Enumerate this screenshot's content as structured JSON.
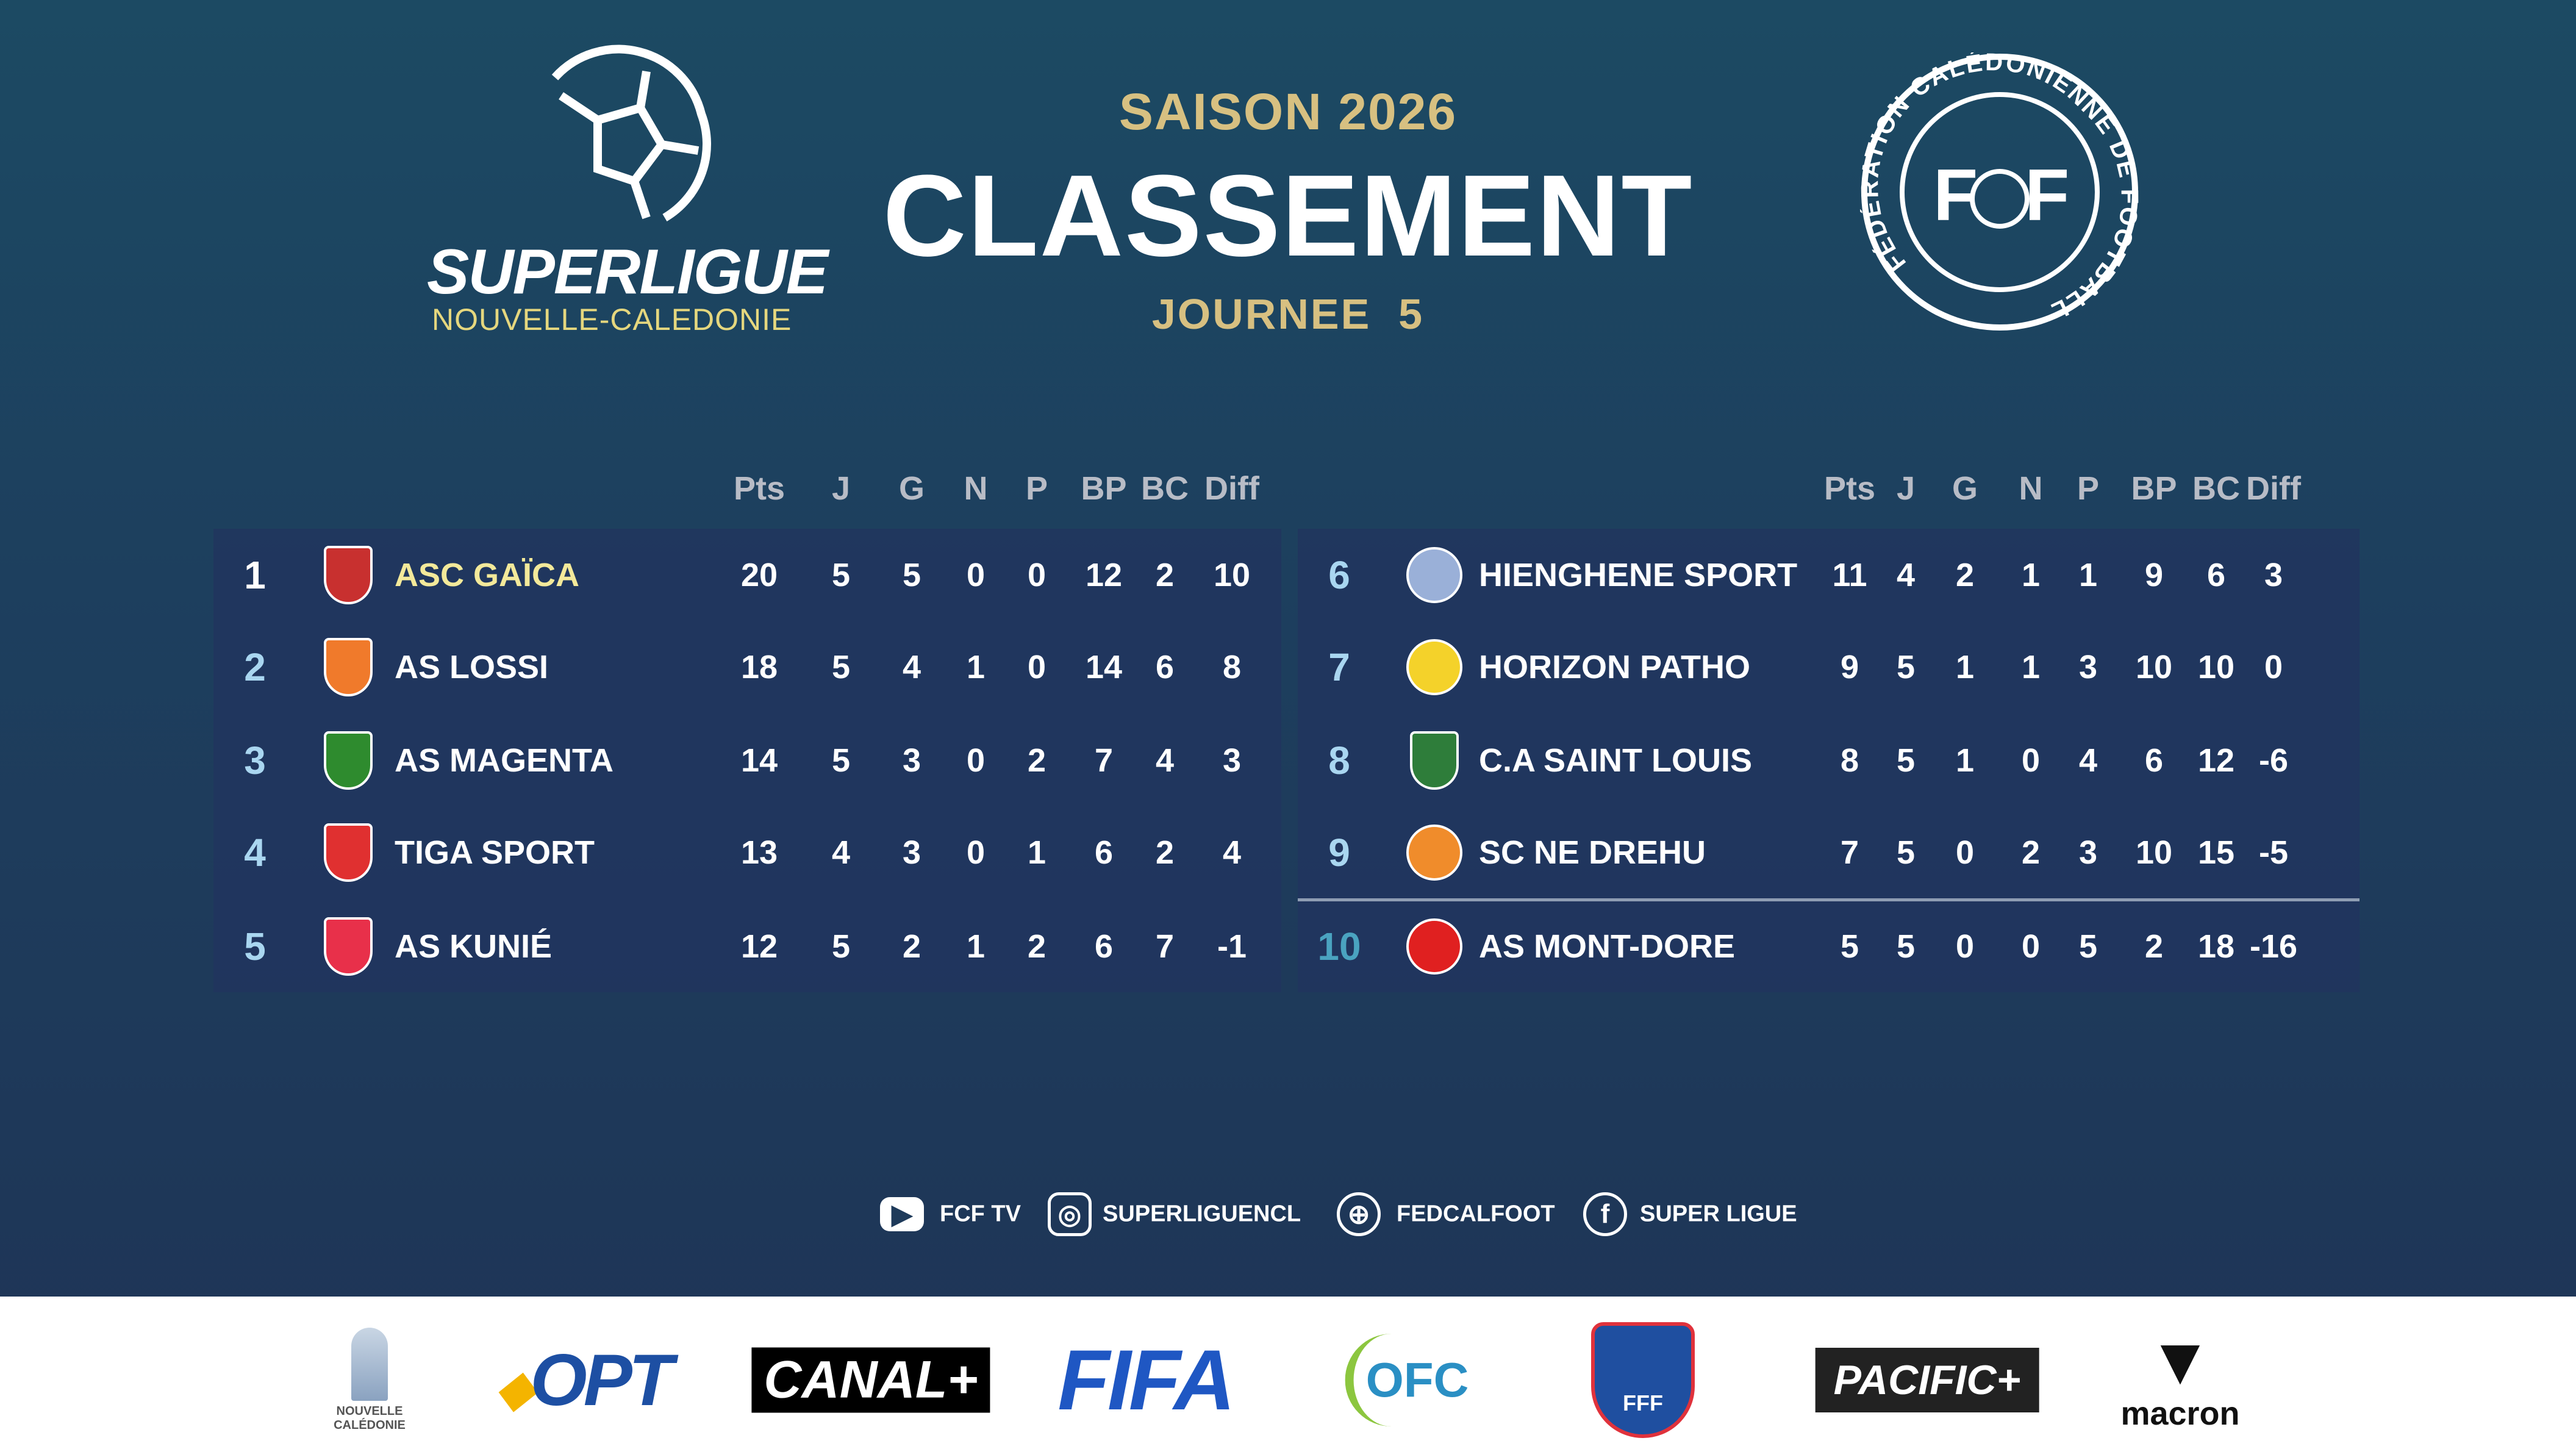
{
  "header": {
    "league_logo_line1": "SUPERLIGUE",
    "league_logo_line2": "NOUVELLE-CALEDONIE",
    "season": "SAISON 2026",
    "title": "CLASSEMENT",
    "matchday": "JOURNEE  5",
    "federation_logo_text": "FÉDÉRATION CALÉDONIENNE DE FOOTBALL"
  },
  "columns": [
    "Pts",
    "J",
    "G",
    "N",
    "P",
    "BP",
    "BC",
    "Diff"
  ],
  "colors": {
    "gold": "#d7c081",
    "leader_name": "#f3e99a",
    "rank": "#a9d6f0",
    "relegation_rank": "#4aa3c0",
    "panel": "#22345f"
  },
  "standings": [
    {
      "rank": "1",
      "team": "ASC GAÏCA",
      "logo": "gaica-crest",
      "values": [
        "20",
        "5",
        "5",
        "0",
        "0",
        "12",
        "2",
        "10"
      ]
    },
    {
      "rank": "2",
      "team": "AS LOSSI",
      "logo": "lossi-crest",
      "values": [
        "18",
        "5",
        "4",
        "1",
        "0",
        "14",
        "6",
        "8"
      ]
    },
    {
      "rank": "3",
      "team": "AS MAGENTA",
      "logo": "magenta-crest",
      "values": [
        "14",
        "5",
        "3",
        "0",
        "2",
        "7",
        "4",
        "3"
      ]
    },
    {
      "rank": "4",
      "team": "TIGA SPORT",
      "logo": "tiga-crest",
      "values": [
        "13",
        "4",
        "3",
        "0",
        "1",
        "6",
        "2",
        "4"
      ]
    },
    {
      "rank": "5",
      "team": "AS KUNIÉ",
      "logo": "kunie-crest",
      "values": [
        "12",
        "5",
        "2",
        "1",
        "2",
        "6",
        "7",
        "-1"
      ]
    },
    {
      "rank": "6",
      "team": "HIENGHENE SPORT",
      "logo": "hienghene-crest",
      "values": [
        "11",
        "4",
        "2",
        "1",
        "1",
        "9",
        "6",
        "3"
      ]
    },
    {
      "rank": "7",
      "team": "HORIZON PATHO",
      "logo": "horizon-crest",
      "values": [
        "9",
        "5",
        "1",
        "1",
        "3",
        "10",
        "10",
        "0"
      ]
    },
    {
      "rank": "8",
      "team": "C.A SAINT LOUIS",
      "logo": "saint-louis-crest",
      "values": [
        "8",
        "5",
        "1",
        "0",
        "4",
        "6",
        "12",
        "-6"
      ]
    },
    {
      "rank": "9",
      "team": "SC NE DREHU",
      "logo": "ne-drehu-crest",
      "values": [
        "7",
        "5",
        "0",
        "2",
        "3",
        "10",
        "15",
        "-5"
      ]
    },
    {
      "rank": "10",
      "team": "AS MONT-DORE",
      "logo": "mont-dore-crest",
      "values": [
        "5",
        "5",
        "0",
        "0",
        "5",
        "2",
        "18",
        "-16"
      ]
    }
  ],
  "social": [
    {
      "icon": "youtube-icon",
      "label": "FCF TV"
    },
    {
      "icon": "instagram-icon",
      "label": "SUPERLIGUENCL"
    },
    {
      "icon": "globe-icon",
      "label": "FEDCALFOOT"
    },
    {
      "icon": "facebook-icon",
      "label": "SUPER LIGUE"
    }
  ],
  "sponsors": [
    "NOUVELLE CALÉDONIE",
    "OPT",
    "CANAL+",
    "FIFA",
    "OFC",
    "FFF",
    "PACIFIC+",
    "macron"
  ]
}
